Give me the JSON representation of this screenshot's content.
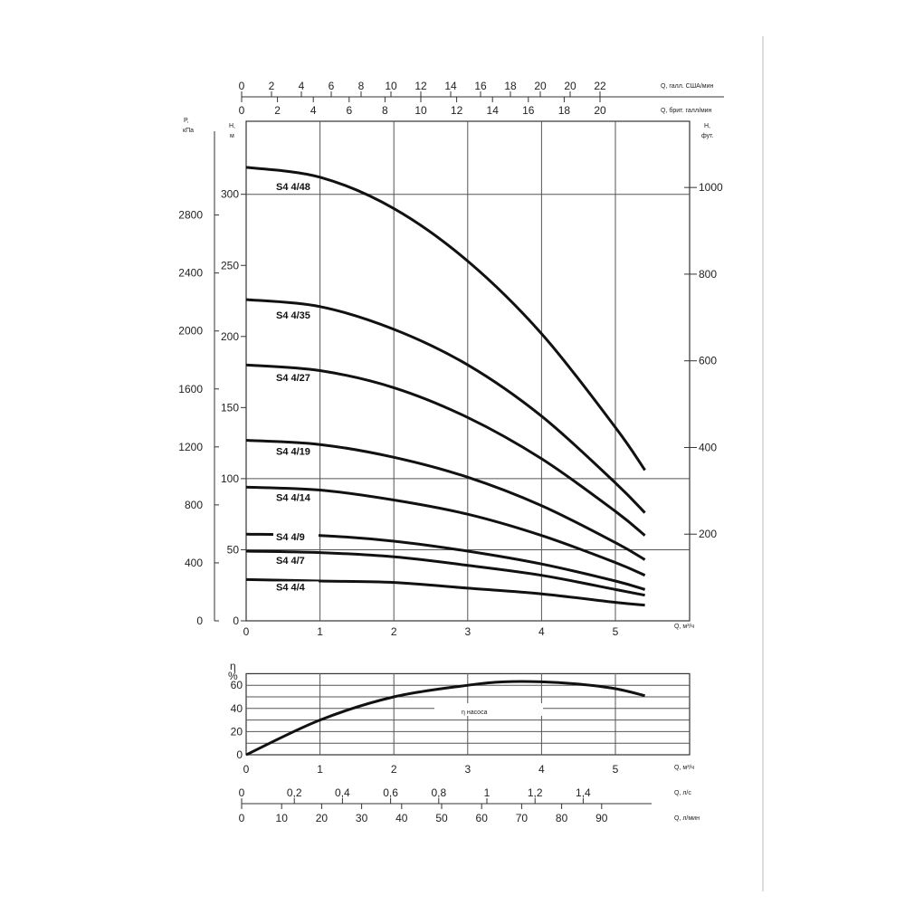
{
  "chart_data": [
    {
      "type": "line",
      "x": [
        0,
        1,
        2,
        3,
        4,
        5,
        5.4
      ],
      "xlabel": "Q, м³/ч",
      "xlim": [
        0,
        6
      ],
      "ylabel": "H, м",
      "ylim": [
        0,
        350
      ],
      "y_ticks": [
        0,
        50,
        100,
        150,
        200,
        250,
        300
      ],
      "x_ticks": [
        0,
        1,
        2,
        3,
        4,
        5
      ],
      "secondary_left_axis": {
        "label_top": "P,",
        "label_bottom": "кПа",
        "ticks": [
          "0",
          "400",
          "800",
          "1200",
          "1600",
          "2000",
          "2400",
          "2800"
        ]
      },
      "secondary_right_axis": {
        "label_top": "H,",
        "label_bottom": "фут.",
        "ticks": [
          "200",
          "400",
          "600",
          "800",
          "1000"
        ]
      },
      "top_axis_us": {
        "label": "Q, галл. США/мин",
        "ticks": [
          "0",
          "2",
          "4",
          "6",
          "8",
          "10",
          "12",
          "14",
          "16",
          "18",
          "20",
          "20",
          "22"
        ]
      },
      "top_axis_uk": {
        "label": "Q, брит. галл/мин",
        "ticks": [
          "0",
          "2",
          "4",
          "6",
          "8",
          "10",
          "12",
          "14",
          "16",
          "18",
          "20"
        ]
      },
      "series": [
        {
          "name": "S4 4/48",
          "values": [
            319,
            312,
            290,
            253,
            202,
            136,
            106
          ]
        },
        {
          "name": "S4 4/35",
          "values": [
            226,
            221,
            205,
            180,
            144,
            97,
            76
          ]
        },
        {
          "name": "S4 4/27",
          "values": [
            180,
            176,
            164,
            143,
            114,
            77,
            60
          ]
        },
        {
          "name": "S4 4/19",
          "values": [
            127,
            124,
            115,
            101,
            81,
            55,
            43
          ]
        },
        {
          "name": "S4 4/14",
          "values": [
            94,
            92,
            85,
            75,
            60,
            41,
            32
          ]
        },
        {
          "name": "S4 4/9",
          "values": [
            61,
            60,
            56,
            49,
            40,
            28,
            22
          ]
        },
        {
          "name": "S4 4/7",
          "values": [
            49,
            48,
            45,
            39,
            32,
            22,
            18
          ]
        },
        {
          "name": "S4 4/4",
          "values": [
            29,
            28,
            27,
            23,
            19,
            13,
            11
          ]
        }
      ],
      "grid": true
    },
    {
      "type": "line",
      "x": [
        0,
        1,
        2,
        3,
        3.5,
        4,
        4.5,
        5,
        5.4
      ],
      "xlabel": "Q, м³/ч",
      "x_ticks": [
        0,
        1,
        2,
        3,
        4,
        5
      ],
      "ylabel_top": "η",
      "ylabel_bottom": "%",
      "ylim": [
        0,
        70
      ],
      "y_ticks": [
        0,
        20,
        40,
        60
      ],
      "series": [
        {
          "name": "η насоса",
          "values": [
            0,
            30,
            50,
            60,
            63,
            63,
            61,
            57,
            51
          ]
        }
      ],
      "bottom_axis_ls": {
        "label": "Q, л/с",
        "ticks": [
          "0",
          "0,2",
          "0,4",
          "0,6",
          "0,8",
          "1",
          "1,2",
          "1,4"
        ]
      },
      "bottom_axis_lmin": {
        "label": "Q, л/мин",
        "ticks": [
          "0",
          "10",
          "20",
          "30",
          "40",
          "50",
          "60",
          "70",
          "80",
          "90"
        ]
      },
      "grid": true
    }
  ]
}
